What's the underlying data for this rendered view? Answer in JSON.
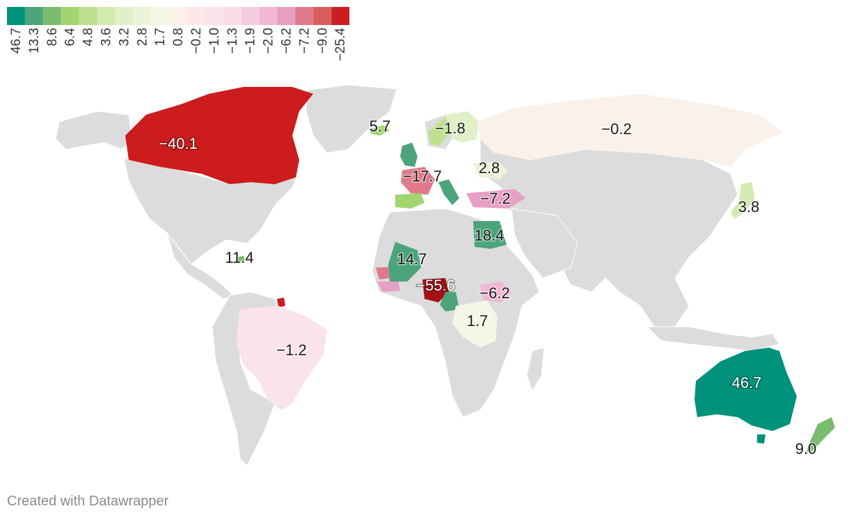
{
  "legend": {
    "ticks": [
      "46.7",
      "13.3",
      "8.6",
      "6.4",
      "4.8",
      "3.6",
      "3.2",
      "2.8",
      "1.7",
      "0.8",
      "−0.2",
      "−1.0",
      "−1.3",
      "−1.9",
      "−2.0",
      "−6.2",
      "−7.2",
      "−9.0",
      "−25.4"
    ],
    "colors": [
      "#00927a",
      "#4ba47a",
      "#79bc6e",
      "#a2d56f",
      "#bfe08f",
      "#d3eab0",
      "#e1f0c8",
      "#ebf4d8",
      "#f3f7e6",
      "#f9f1ea",
      "#fce8e8",
      "#fbe3ea",
      "#fadce8",
      "#f6cde0",
      "#f1b7d3",
      "#e79fc3",
      "#e07a8a",
      "#da5d5f",
      "#cc1c1e"
    ]
  },
  "map": {
    "base_color": "#dcdcdc",
    "countries": [
      {
        "name": "Canada",
        "value": "−40.1",
        "color": "#cc1c1e"
      },
      {
        "name": "Iceland",
        "value": "5.7",
        "color": "#a2d56f"
      },
      {
        "name": "Sweden/Finland",
        "value": "−1.8",
        "color": "#e1f0c8"
      },
      {
        "name": "Russia",
        "value": "−0.2",
        "color": "#f9f1ea"
      },
      {
        "name": "Ukraine",
        "value": "2.8",
        "color": "#ebf4d8"
      },
      {
        "name": "France",
        "value": "−17.7",
        "color": "#e07a8a"
      },
      {
        "name": "Turkey",
        "value": "−7.2",
        "color": "#e79fc3"
      },
      {
        "name": "Japan",
        "value": "3.8",
        "color": "#d3eab0"
      },
      {
        "name": "Egypt",
        "value": "18.4",
        "color": "#4ba47a"
      },
      {
        "name": "Mali",
        "value": "14.7",
        "color": "#4ba47a"
      },
      {
        "name": "Dominican Republic",
        "value": "11.4",
        "color": "#79bc6e"
      },
      {
        "name": "Nigeria",
        "value": "−55.6",
        "color": "#a51216"
      },
      {
        "name": "Ethiopia",
        "value": "−6.2",
        "color": "#f1b7d3"
      },
      {
        "name": "DR Congo",
        "value": "1.7",
        "color": "#f3f7e6"
      },
      {
        "name": "Brazil",
        "value": "−1.2",
        "color": "#fbe3ea"
      },
      {
        "name": "Australia",
        "value": "46.7",
        "color": "#00927a"
      },
      {
        "name": "New Zealand",
        "value": "9.0",
        "color": "#79bc6e"
      },
      {
        "name": "United Kingdom",
        "value": "",
        "color": "#4ba47a"
      },
      {
        "name": "Spain",
        "value": "",
        "color": "#a2d56f"
      },
      {
        "name": "Italy",
        "value": "",
        "color": "#4ba47a"
      },
      {
        "name": "Cameroon",
        "value": "",
        "color": "#4ba47a"
      },
      {
        "name": "French Guiana",
        "value": "",
        "color": "#cc1c1e"
      }
    ]
  },
  "footer": "Created with Datawrapper"
}
